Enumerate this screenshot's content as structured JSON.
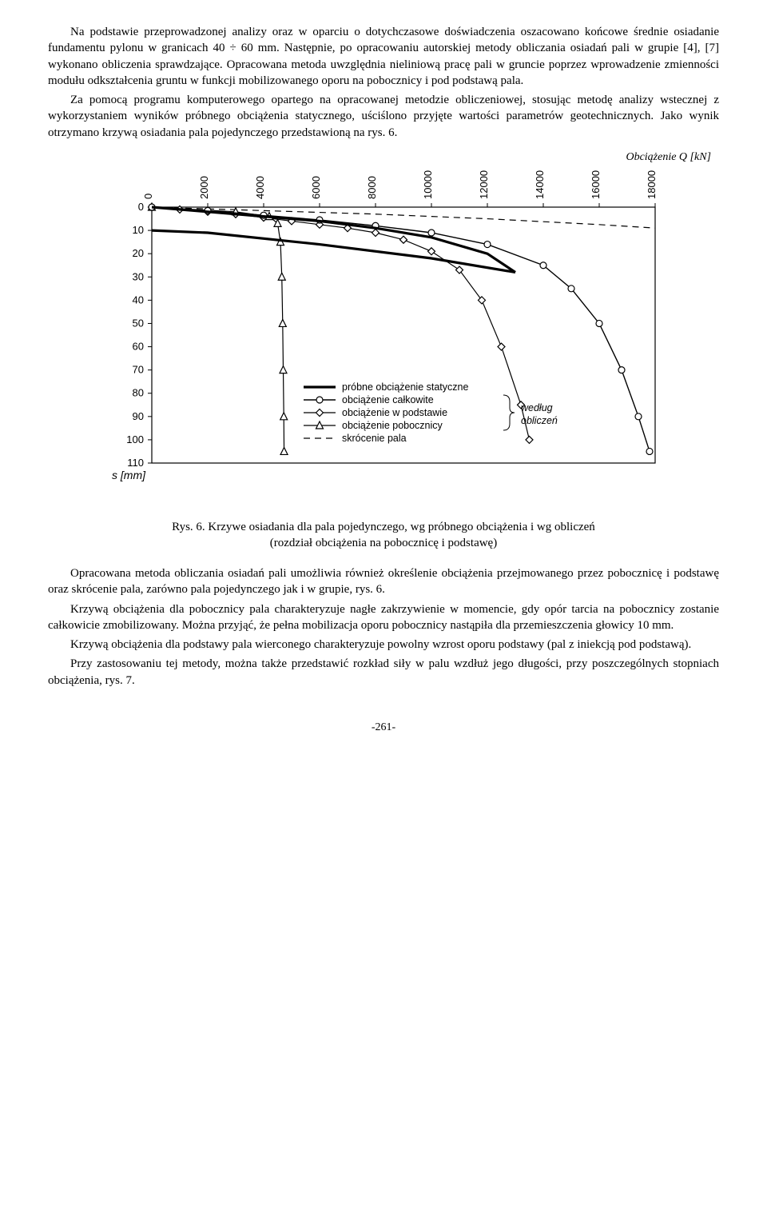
{
  "paragraphs": {
    "p1": "Na podstawie przeprowadzonej analizy oraz w oparciu o dotychczasowe doświadczenia oszacowano końcowe średnie osiadanie fundamentu pylonu w granicach 40 ÷ 60 mm. Następnie, po opracowaniu autorskiej metody obliczania osiadań pali w grupie [4], [7] wykonano obliczenia sprawdzające. Opracowana metoda uwzględnia nieliniową pracę pali w gruncie poprzez wprowadzenie zmienności modułu odkształcenia gruntu w funkcji mobilizowanego oporu na pobocznicy i pod podstawą pala.",
    "p2": "Za pomocą programu komputerowego opartego na opracowanej metodzie obliczeniowej, stosując metodę analizy wstecznej z wykorzystaniem wyników próbnego obciążenia statycznego, uściślono przyjęte wartości parametrów geotechnicznych. Jako wynik otrzymano krzywą osiadania pala pojedynczego przedstawioną na rys. 6.",
    "p3": "Opracowana metoda obliczania osiadań pali umożliwia również określenie obciążenia przejmowanego przez pobocznicę i podstawę oraz skrócenie pala, zarówno pala pojedynczego jak i w grupie, rys. 6.",
    "p4": "Krzywą obciążenia dla pobocznicy pala charakteryzuje nagłe zakrzywienie w momencie, gdy opór tarcia na pobocznicy zostanie całkowicie zmobilizowany. Można przyjąć, że pełna mobilizacja oporu pobocznicy nastąpiła dla przemieszczenia głowicy 10 mm.",
    "p5": "Krzywą obciążenia dla podstawy pala wierconego charakteryzuje powolny wzrost oporu podstawy (pal z iniekcją pod podstawą).",
    "p6": "Przy zastosowaniu tej metody, można także przedstawić rozkład siły w palu wzdłuż jego długości, przy poszczególnych stopniach obciążenia, rys. 7."
  },
  "figure": {
    "caption_line1": "Rys. 6. Krzywe osiadania dla pala pojedynczego, wg próbnego obciążenia i wg obliczeń",
    "caption_line2": "(rozdział obciążenia na pobocznicę i podstawę)",
    "load_label": "Obciążenie Q [kN]",
    "y_label": "s [mm]",
    "legend": {
      "probne": "próbne obciążenie statyczne",
      "calkowite": "obciążenie całkowite",
      "podstawa": "obciążenie w podstawie",
      "pobocznica": "obciążenie pobocznicy",
      "skrocenie": "skrócenie pala",
      "wedlug": "według",
      "obliczen": "obliczeń"
    }
  },
  "page_number": "-261-",
  "chart": {
    "type": "line",
    "background_color": "#ffffff",
    "grid_color": "#000000",
    "x_ticks": [
      0,
      2000,
      4000,
      6000,
      8000,
      10000,
      12000,
      14000,
      16000,
      18000
    ],
    "y_ticks": [
      0,
      10,
      20,
      30,
      40,
      50,
      60,
      70,
      80,
      90,
      100,
      110
    ],
    "xlim": [
      0,
      18000
    ],
    "ylim": [
      0,
      110
    ],
    "series": {
      "probne_heavy": {
        "stroke": "#000000",
        "stroke_width": 3.2,
        "marker": "none",
        "points_load": [
          [
            0,
            0
          ],
          [
            2000,
            2
          ],
          [
            4000,
            4
          ],
          [
            6000,
            6
          ],
          [
            8000,
            9
          ],
          [
            10000,
            13
          ],
          [
            12000,
            20
          ],
          [
            13000,
            28
          ]
        ],
        "points_unload": [
          [
            13000,
            28
          ],
          [
            10000,
            22
          ],
          [
            6000,
            16
          ],
          [
            2000,
            11
          ],
          [
            0,
            10
          ]
        ]
      },
      "calkowite": {
        "stroke": "#000000",
        "stroke_width": 1.4,
        "marker": "circle",
        "points": [
          [
            0,
            0
          ],
          [
            2000,
            1.5
          ],
          [
            4000,
            3.5
          ],
          [
            6000,
            5.5
          ],
          [
            8000,
            8
          ],
          [
            10000,
            11
          ],
          [
            12000,
            16
          ],
          [
            14000,
            25
          ],
          [
            15000,
            35
          ],
          [
            16000,
            50
          ],
          [
            16800,
            70
          ],
          [
            17400,
            90
          ],
          [
            17800,
            105
          ]
        ]
      },
      "podstawa": {
        "stroke": "#000000",
        "stroke_width": 1.2,
        "marker": "diamond",
        "points": [
          [
            0,
            0
          ],
          [
            1000,
            1
          ],
          [
            2000,
            2
          ],
          [
            3000,
            3
          ],
          [
            4000,
            4.5
          ],
          [
            5000,
            6
          ],
          [
            6000,
            7.5
          ],
          [
            7000,
            9
          ],
          [
            8000,
            11
          ],
          [
            9000,
            14
          ],
          [
            10000,
            19
          ],
          [
            11000,
            27
          ],
          [
            11800,
            40
          ],
          [
            12500,
            60
          ],
          [
            13200,
            85
          ],
          [
            13500,
            100
          ]
        ]
      },
      "pobocznica": {
        "stroke": "#000000",
        "stroke_width": 1.2,
        "marker": "triangle",
        "points": [
          [
            0,
            0
          ],
          [
            3000,
            2
          ],
          [
            4200,
            4
          ],
          [
            4500,
            7
          ],
          [
            4600,
            15
          ],
          [
            4650,
            30
          ],
          [
            4680,
            50
          ],
          [
            4700,
            70
          ],
          [
            4720,
            90
          ],
          [
            4730,
            105
          ]
        ]
      },
      "skrocenie": {
        "stroke": "#000000",
        "stroke_width": 1.2,
        "dash": "8,6",
        "marker": "none",
        "points": [
          [
            0,
            0
          ],
          [
            4000,
            1.5
          ],
          [
            8000,
            3
          ],
          [
            12000,
            5
          ],
          [
            16000,
            7.5
          ],
          [
            18000,
            9
          ]
        ]
      }
    }
  }
}
